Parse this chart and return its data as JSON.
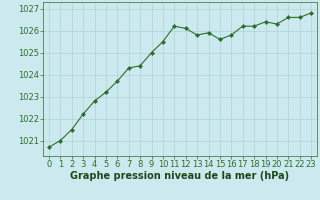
{
  "x": [
    0,
    1,
    2,
    3,
    4,
    5,
    6,
    7,
    8,
    9,
    10,
    11,
    12,
    13,
    14,
    15,
    16,
    17,
    18,
    19,
    20,
    21,
    22,
    23
  ],
  "y": [
    1020.7,
    1021.0,
    1021.5,
    1022.2,
    1022.8,
    1023.2,
    1023.7,
    1024.3,
    1024.4,
    1025.0,
    1025.5,
    1026.2,
    1026.1,
    1025.8,
    1025.9,
    1025.6,
    1025.8,
    1026.2,
    1026.2,
    1026.4,
    1026.3,
    1026.6,
    1026.6,
    1026.8
  ],
  "line_color": "#2d6e2d",
  "marker": "D",
  "marker_size": 2.0,
  "bg_color": "#cce9f0",
  "grid_color": "#aad4d4",
  "xlabel": "Graphe pression niveau de la mer (hPa)",
  "xlabel_color": "#1a4a1a",
  "xlabel_fontsize": 7,
  "ylabel_ticks": [
    1021,
    1022,
    1023,
    1024,
    1025,
    1026,
    1027
  ],
  "ylim": [
    1020.3,
    1027.3
  ],
  "xlim": [
    -0.5,
    23.5
  ],
  "tick_fontsize": 6,
  "tick_color": "#2d6e2d",
  "spine_color": "#2d6e2d"
}
